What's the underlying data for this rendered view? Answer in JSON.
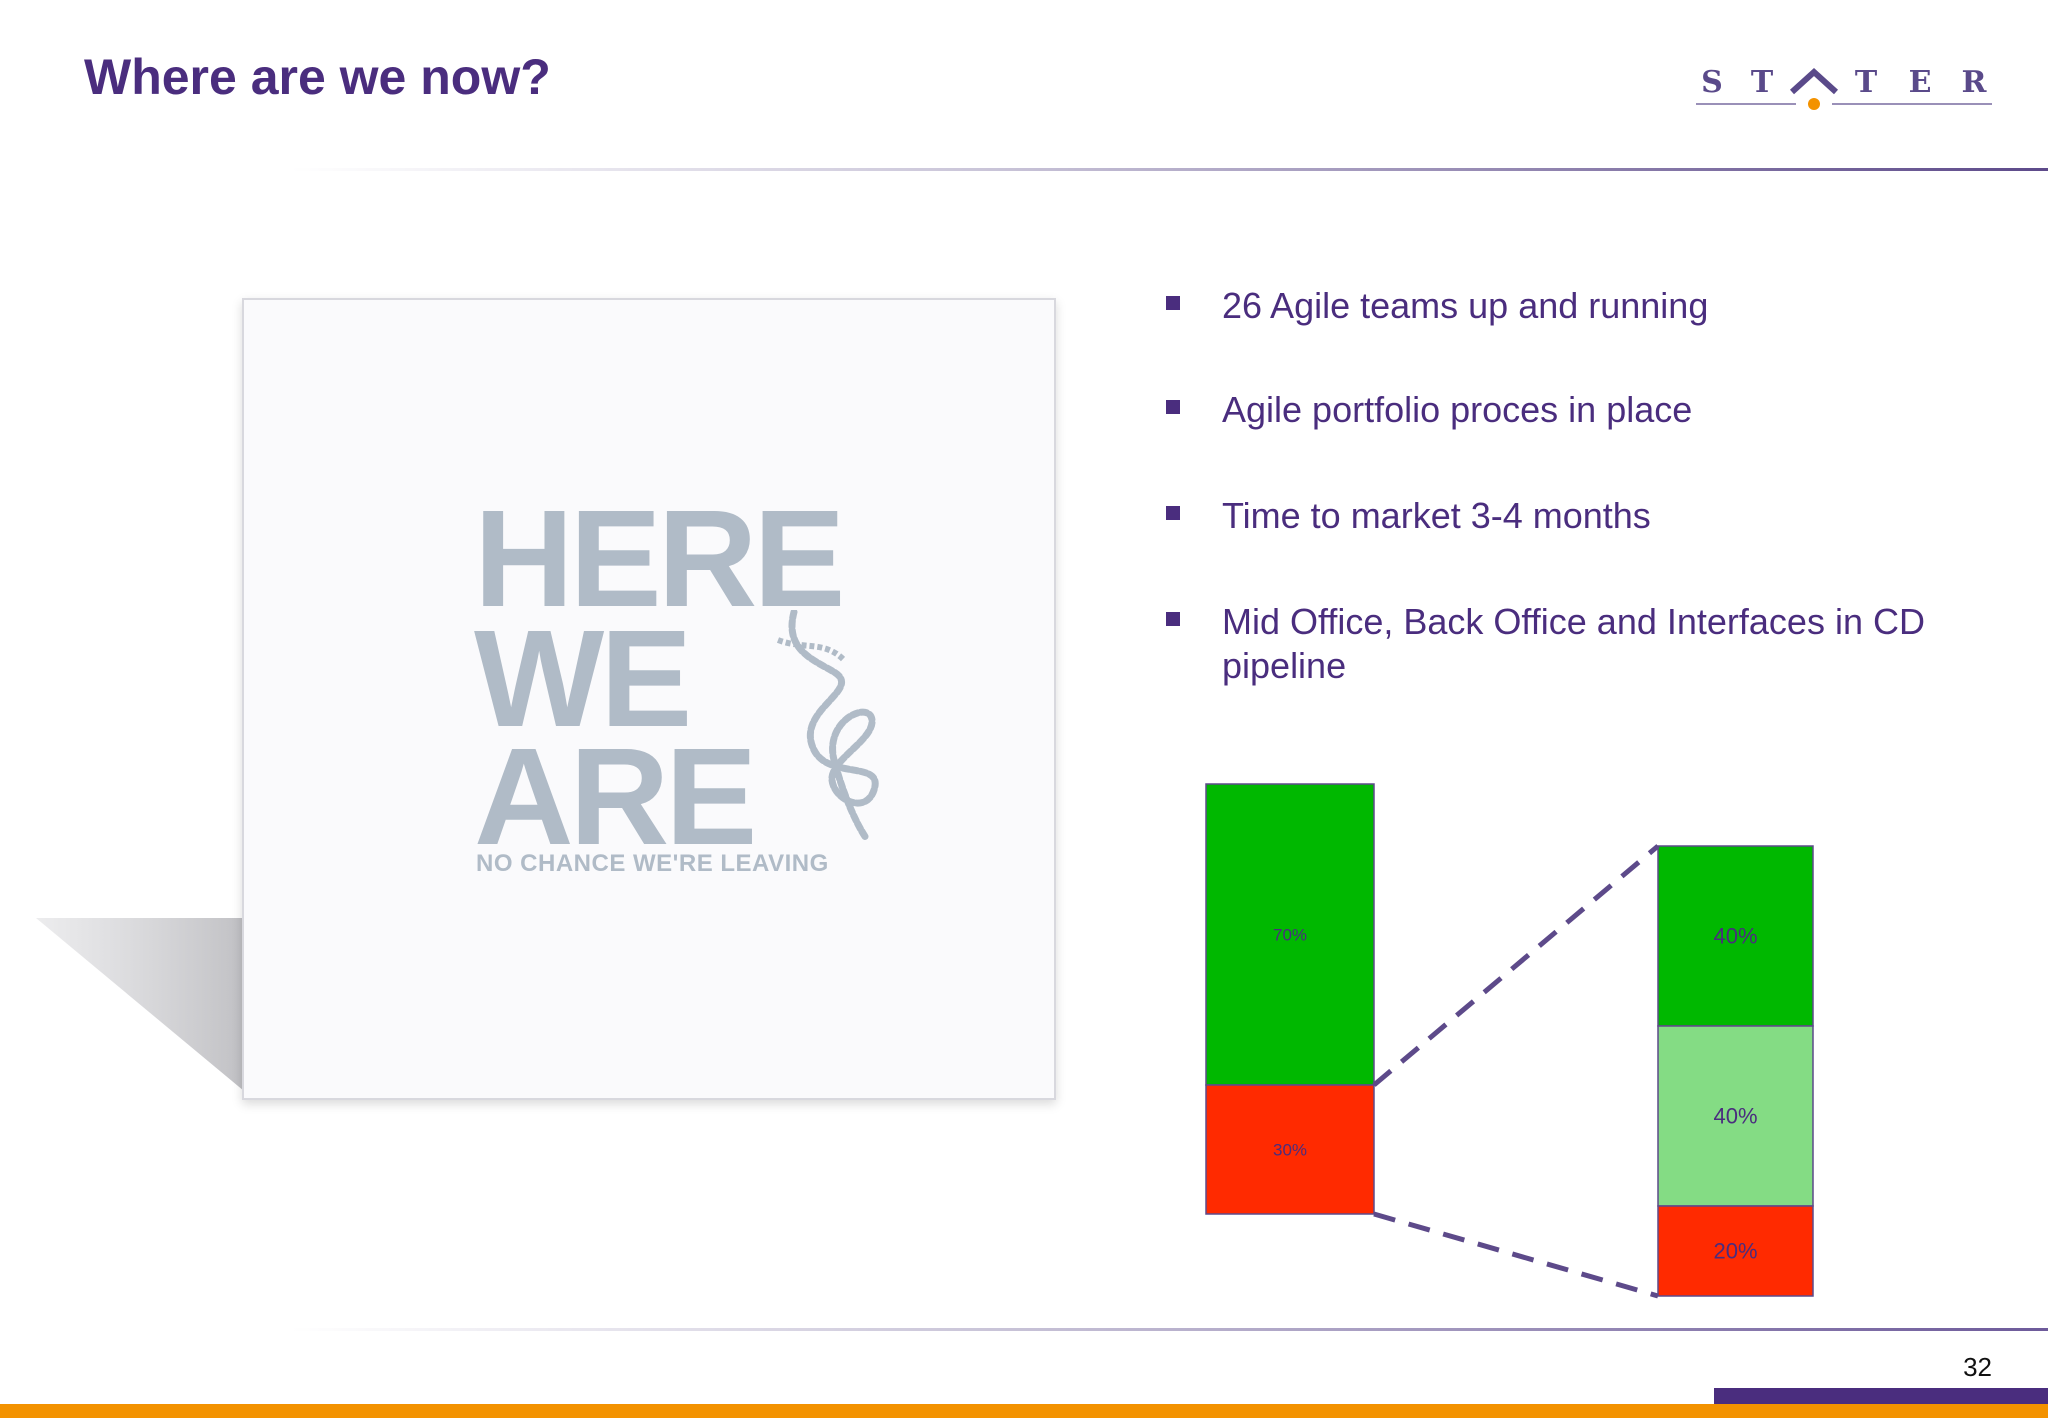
{
  "slide": {
    "title": "Where are we now?",
    "page_number": "32"
  },
  "logo": {
    "letters": [
      "S",
      "T",
      "T",
      "E",
      "R"
    ],
    "text": "STATER",
    "colors": {
      "letters": "#5a4a8a",
      "dot": "#f39200"
    }
  },
  "picture": {
    "headline_lines": [
      "HERE",
      "WE",
      "ARE"
    ],
    "tagline": "NO CHANCE WE'RE LEAVING",
    "icon": "rope-knot-icon"
  },
  "bullets": [
    {
      "text": "26  Agile teams up and running"
    },
    {
      "text": "Agile portfolio proces in place"
    },
    {
      "text": "Time to market 3-4 months"
    },
    {
      "text": "Mid Office, Back Office and Interfaces in CD pipeline"
    }
  ],
  "chart_data": {
    "type": "bar",
    "stacked": true,
    "categories": [
      "",
      ""
    ],
    "series": [
      {
        "values": [
          70,
          40
        ],
        "color": "#00b800"
      },
      {
        "values": [
          0,
          40
        ],
        "color": "#84dc84"
      },
      {
        "values": [
          30,
          20
        ],
        "color": "#ff2a00"
      }
    ],
    "data_labels": [
      [
        "70%",
        "30%"
      ],
      [
        "40%",
        "40%",
        "20%"
      ]
    ],
    "connector": "dashed lines linking the red/green boundary of the left bar to the top and bottom of the right bar",
    "colors": {
      "label_text": "#4a2d7e",
      "connector": "#5d4a8a"
    }
  },
  "theme": {
    "accent_purple": "#4a2d7e",
    "accent_orange": "#f39200"
  }
}
